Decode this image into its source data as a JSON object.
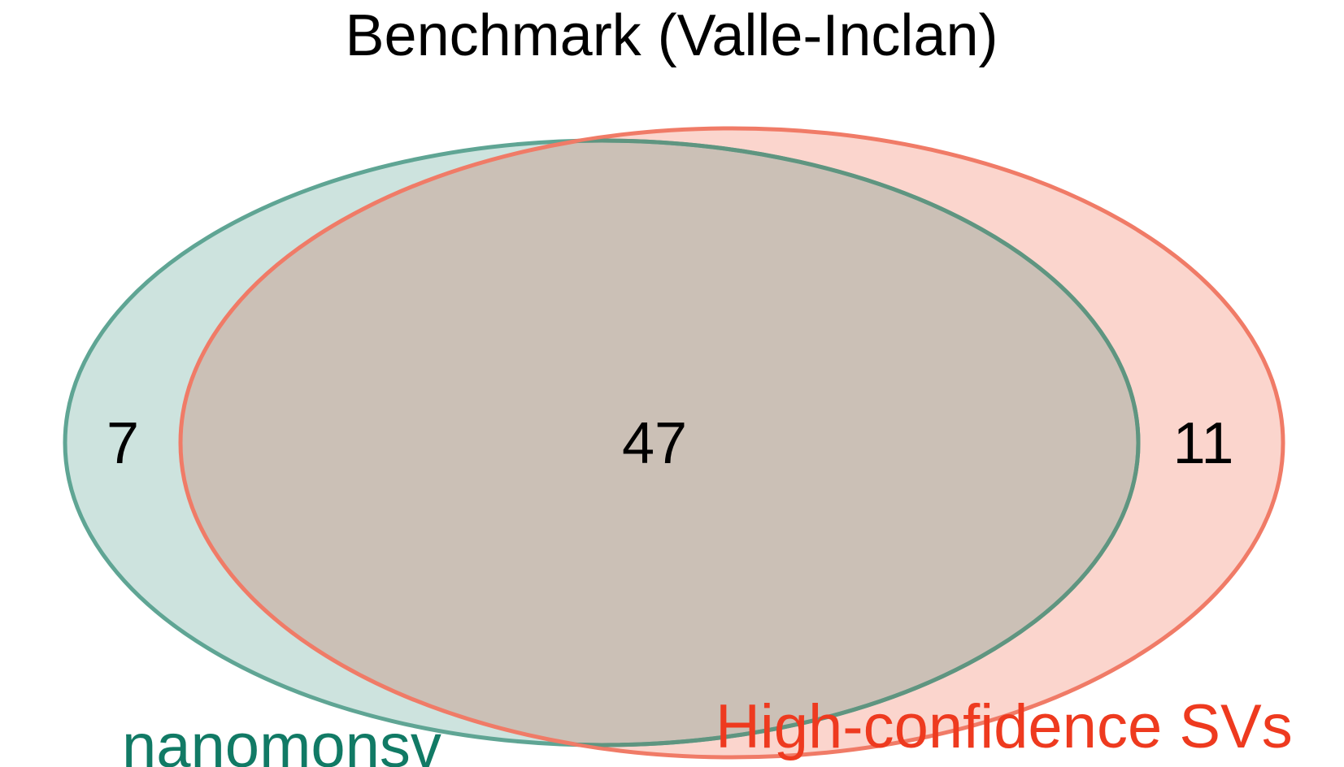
{
  "title": "Benchmark (Valle-Inclan)",
  "sets": [
    {
      "name": "nanomonsv",
      "fill_color": "#cde3de",
      "stroke_color": "#5fa594",
      "label_color": "#117a65"
    },
    {
      "name": "High-confidence SVs",
      "fill_color": "#fbd5cd",
      "stroke_color": "#f07b67",
      "label_color": "#ee3a1f"
    }
  ],
  "overlap": {
    "fill_color": "#cbc0b6",
    "inner_stroke_color": "#5f9580"
  },
  "counts": {
    "only_nanomonsv": "7",
    "both": "47",
    "only_high_confidence": "11"
  }
}
